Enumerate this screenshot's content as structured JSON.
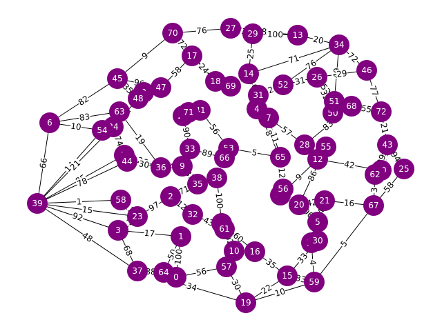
{
  "graph": {
    "node_color": "#800080",
    "label_color": "#ffffff",
    "edge_color": "#000000",
    "nodes": [
      "0",
      "1",
      "2",
      "3",
      "4",
      "5",
      "6",
      "7",
      "8",
      "9",
      "10",
      "11",
      "12",
      "13",
      "14",
      "15",
      "16",
      "17",
      "18",
      "19",
      "20",
      "21",
      "22",
      "23",
      "24",
      "25",
      "26",
      "27",
      "28",
      "29",
      "30",
      "31",
      "32",
      "33",
      "34",
      "35",
      "36",
      "37",
      "38",
      "39",
      "40",
      "41",
      "42",
      "43",
      "44",
      "45",
      "46",
      "47",
      "48",
      "49",
      "50",
      "51",
      "52",
      "53",
      "54",
      "55",
      "56",
      "57",
      "58",
      "59",
      "60",
      "61",
      "62",
      "63",
      "64",
      "65",
      "66",
      "67",
      "68",
      "69",
      "70",
      "71",
      "72"
    ],
    "edges": [
      {
        "source": "39",
        "target": "6",
        "weight": "66"
      },
      {
        "source": "39",
        "target": "54",
        "weight": "14"
      },
      {
        "source": "39",
        "target": "24",
        "weight": "21"
      },
      {
        "source": "39",
        "target": "40",
        "weight": "85"
      },
      {
        "source": "39",
        "target": "58",
        "weight": "1"
      },
      {
        "source": "39",
        "target": "23",
        "weight": "15"
      },
      {
        "source": "39",
        "target": "3",
        "weight": "92"
      },
      {
        "source": "39",
        "target": "37",
        "weight": "48"
      },
      {
        "source": "39",
        "target": "44",
        "weight": "78"
      },
      {
        "source": "6",
        "target": "45",
        "weight": "82"
      },
      {
        "source": "6",
        "target": "63",
        "weight": "83"
      },
      {
        "source": "6",
        "target": "54",
        "weight": "10"
      },
      {
        "source": "45",
        "target": "70",
        "weight": "9"
      },
      {
        "source": "45",
        "target": "47",
        "weight": "96"
      },
      {
        "source": "70",
        "target": "27",
        "weight": "76"
      },
      {
        "source": "70",
        "target": "17",
        "weight": "72"
      },
      {
        "source": "29",
        "target": "13",
        "weight": "100"
      },
      {
        "source": "13",
        "target": "34",
        "weight": "20"
      },
      {
        "source": "34",
        "target": "14",
        "weight": "71"
      },
      {
        "source": "34",
        "target": "46",
        "weight": "72"
      },
      {
        "source": "34",
        "target": "51",
        "weight": "49"
      },
      {
        "source": "46",
        "target": "72",
        "weight": "77"
      },
      {
        "source": "72",
        "target": "43",
        "weight": "21"
      },
      {
        "source": "43",
        "target": "25",
        "weight": "94"
      },
      {
        "source": "25",
        "target": "67",
        "weight": "58"
      },
      {
        "source": "67",
        "target": "59",
        "weight": "5"
      },
      {
        "source": "59",
        "target": "19",
        "weight": "10"
      },
      {
        "source": "19",
        "target": "37",
        "weight": "34"
      },
      {
        "source": "37",
        "target": "64",
        "weight": "88"
      },
      {
        "source": "19",
        "target": "57",
        "weight": "30"
      },
      {
        "source": "19",
        "target": "15",
        "weight": "22"
      },
      {
        "source": "37",
        "target": "3",
        "weight": "68"
      },
      {
        "source": "3",
        "target": "23",
        "weight": "12"
      },
      {
        "source": "59",
        "target": "11",
        "weight": "4"
      },
      {
        "source": "30",
        "target": "15",
        "weight": "33"
      },
      {
        "source": "16",
        "target": "15",
        "weight": "35"
      },
      {
        "source": "10",
        "target": "16",
        "weight": "62"
      },
      {
        "source": "1",
        "target": "64",
        "weight": "50"
      },
      {
        "source": "0",
        "target": "1",
        "weight": "100"
      },
      {
        "source": "61",
        "target": "10",
        "weight": "92"
      },
      {
        "source": "32",
        "target": "2",
        "weight": "12"
      },
      {
        "source": "35",
        "target": "38",
        "weight": "26"
      },
      {
        "source": "9",
        "target": "36",
        "weight": "4"
      },
      {
        "source": "36",
        "target": "40",
        "weight": "26"
      },
      {
        "source": "33",
        "target": "22",
        "weight": "90"
      },
      {
        "source": "22",
        "target": "71",
        "weight": "31"
      },
      {
        "source": "71",
        "target": "41",
        "weight": "61"
      },
      {
        "source": "41",
        "target": "53",
        "weight": "56"
      },
      {
        "source": "53",
        "target": "66",
        "weight": "6"
      },
      {
        "source": "18",
        "target": "69",
        "weight": "22"
      },
      {
        "source": "69",
        "target": "14",
        "weight": "35"
      },
      {
        "source": "14",
        "target": "31",
        "weight": "46"
      },
      {
        "source": "31",
        "target": "4",
        "weight": "57"
      },
      {
        "source": "4",
        "target": "7",
        "weight": "39"
      },
      {
        "source": "7",
        "target": "65",
        "weight": "11"
      },
      {
        "source": "65",
        "target": "56",
        "weight": "12"
      },
      {
        "source": "56",
        "target": "42",
        "weight": "96"
      },
      {
        "source": "42",
        "target": "20",
        "weight": "72"
      },
      {
        "source": "20",
        "target": "21",
        "weight": "42"
      },
      {
        "source": "21",
        "target": "5",
        "weight": "4"
      },
      {
        "source": "5",
        "target": "11",
        "weight": "51"
      },
      {
        "source": "52",
        "target": "26",
        "weight": "31"
      },
      {
        "source": "26",
        "target": "51",
        "weight": "52"
      },
      {
        "source": "51",
        "target": "50",
        "weight": "20"
      },
      {
        "source": "50",
        "target": "68",
        "weight": "16"
      },
      {
        "source": "68",
        "target": "28",
        "weight": "83"
      },
      {
        "source": "28",
        "target": "55",
        "weight": "16"
      },
      {
        "source": "55",
        "target": "12",
        "weight": "24"
      },
      {
        "source": "12",
        "target": "60",
        "weight": "42"
      },
      {
        "source": "60",
        "target": "62",
        "weight": "93"
      },
      {
        "source": "62",
        "target": "67",
        "weight": "3"
      },
      {
        "source": "8",
        "target": "48",
        "weight": "58"
      },
      {
        "source": "48",
        "target": "24",
        "weight": "31"
      },
      {
        "source": "24",
        "target": "63",
        "weight": "93"
      },
      {
        "source": "58",
        "target": "23",
        "weight": "13"
      },
      {
        "source": "49",
        "target": "61",
        "weight": "82"
      },
      {
        "source": "0",
        "target": "57",
        "weight": "56"
      },
      {
        "source": "17",
        "target": "47",
        "weight": "58"
      },
      {
        "source": "27",
        "target": "29",
        "weight": "72"
      },
      {
        "source": "29",
        "target": "14",
        "weight": "25"
      },
      {
        "source": "2",
        "target": "35",
        "weight": "71"
      },
      {
        "source": "38",
        "target": "49",
        "weight": "100"
      },
      {
        "source": "44",
        "target": "36",
        "weight": "30"
      },
      {
        "source": "33",
        "target": "9",
        "weight": "6"
      },
      {
        "source": "66",
        "target": "38",
        "weight": "31"
      },
      {
        "source": "3",
        "target": "1",
        "weight": "17"
      },
      {
        "source": "10",
        "target": "57",
        "weight": "35"
      },
      {
        "source": "20",
        "target": "5",
        "weight": "96"
      },
      {
        "source": "21",
        "target": "67",
        "weight": "16"
      },
      {
        "source": "30",
        "target": "11",
        "weight": "7"
      },
      {
        "source": "43",
        "target": "60",
        "weight": "42"
      },
      {
        "source": "40",
        "target": "44",
        "weight": "64"
      },
      {
        "source": "54",
        "target": "63",
        "weight": "24"
      },
      {
        "source": "47",
        "target": "8",
        "weight": "55"
      },
      {
        "source": "22",
        "target": "41",
        "weight": "44"
      },
      {
        "source": "18",
        "target": "17",
        "weight": "24"
      },
      {
        "source": "27",
        "target": "13",
        "weight": "8"
      },
      {
        "source": "7",
        "target": "28",
        "weight": "57"
      },
      {
        "source": "52",
        "target": "31",
        "weight": "2"
      },
      {
        "source": "68",
        "target": "72",
        "weight": "55"
      },
      {
        "source": "26",
        "target": "50",
        "weight": "32"
      },
      {
        "source": "12",
        "target": "42",
        "weight": "9"
      },
      {
        "source": "62",
        "target": "43",
        "weight": "99"
      },
      {
        "source": "65",
        "target": "53",
        "weight": "5"
      },
      {
        "source": "16",
        "target": "49",
        "weight": "60"
      },
      {
        "source": "32",
        "target": "61",
        "weight": "43"
      },
      {
        "source": "2",
        "target": "23",
        "weight": "97"
      },
      {
        "source": "35",
        "target": "9",
        "weight": "81"
      },
      {
        "source": "66",
        "target": "33",
        "weight": "89"
      },
      {
        "source": "4",
        "target": "65",
        "weight": "8"
      },
      {
        "source": "55",
        "target": "20",
        "weight": "86"
      },
      {
        "source": "28",
        "target": "12",
        "weight": "9"
      },
      {
        "source": "15",
        "target": "59",
        "weight": "33"
      },
      {
        "source": "46",
        "target": "26",
        "weight": "29"
      },
      {
        "source": "34",
        "target": "52",
        "weight": "76"
      },
      {
        "source": "70",
        "target": "18",
        "weight": "99"
      },
      {
        "source": "45",
        "target": "48",
        "weight": "35"
      },
      {
        "source": "63",
        "target": "36",
        "weight": "19"
      },
      {
        "source": "24",
        "target": "40",
        "weight": "74"
      }
    ]
  }
}
